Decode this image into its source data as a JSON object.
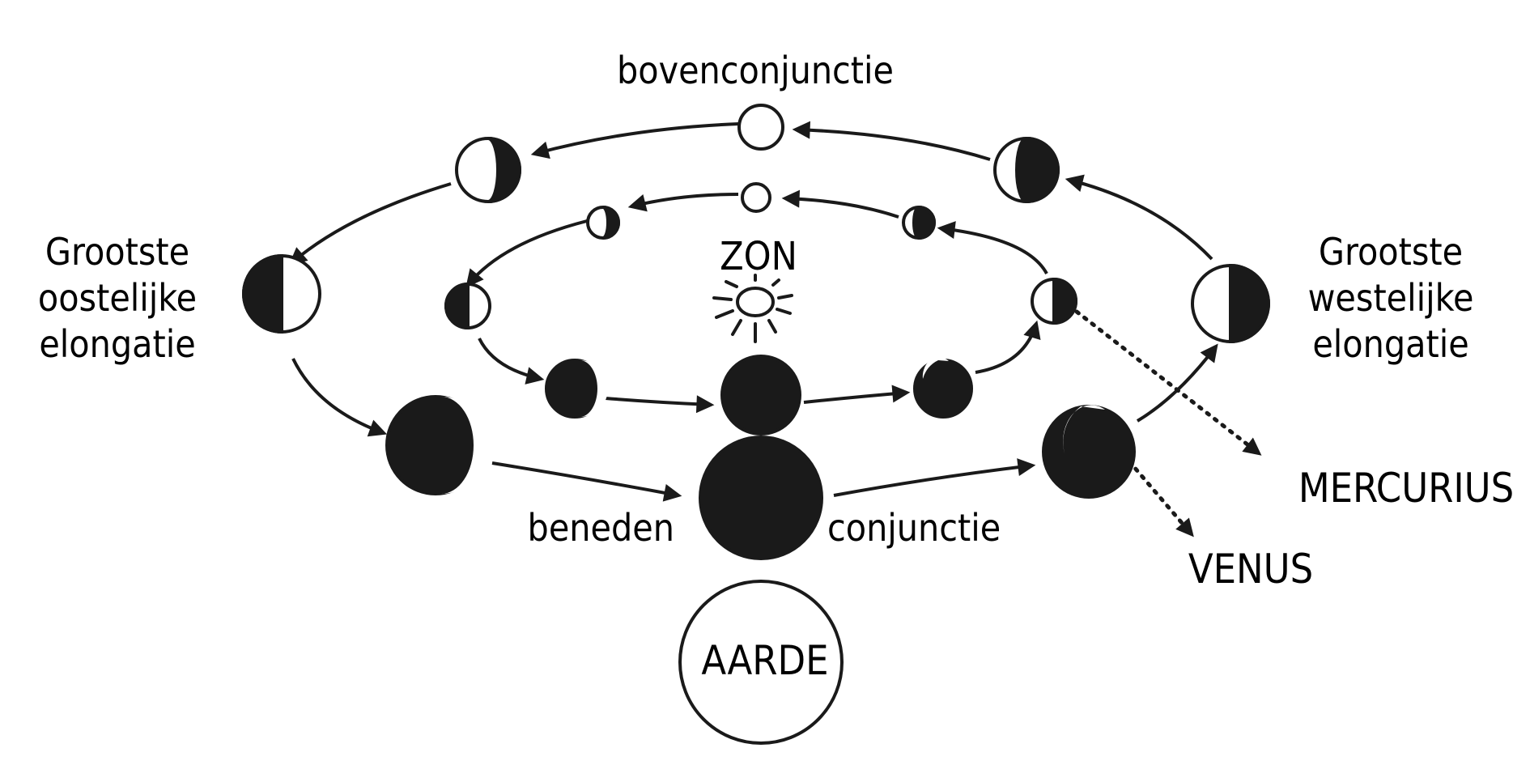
{
  "labels": {
    "superior_conjunction": "bovenconjunctie",
    "sun": "ZON",
    "greatest_eastern": [
      "Grootste",
      "oostelijke",
      "elongatie"
    ],
    "greatest_western": [
      "Grootste",
      "westelijke",
      "elongatie"
    ],
    "inferior_conjunction_left": "beneden",
    "inferior_conjunction_right": "conjunctie",
    "mercury": "MERCURIUS",
    "venus": "VENUS",
    "earth": "AARDE"
  },
  "colors": {
    "ink": "#1a1a1a",
    "background": "#ffffff"
  }
}
